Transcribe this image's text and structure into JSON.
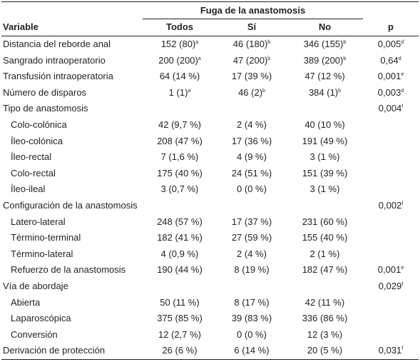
{
  "table": {
    "group_header": "Fuga de la anastomosis",
    "columns": [
      "Variable",
      "Todos",
      "Sí",
      "No",
      "p"
    ],
    "rows": [
      {
        "label": "Distancia del reborde anal",
        "indent": false,
        "cells": [
          [
            "152 (80)",
            "a"
          ],
          [
            "46 (180)",
            "b"
          ],
          [
            "346 (155)",
            "b"
          ],
          [
            "0,005",
            "d"
          ]
        ]
      },
      {
        "label": "Sangrado intraoperatorio",
        "indent": false,
        "cells": [
          [
            "200 (200)",
            "a"
          ],
          [
            "47 (200)",
            "b"
          ],
          [
            "389 (200)",
            "b"
          ],
          [
            "0,64",
            "d"
          ]
        ]
      },
      {
        "label": "Transfusión intraoperatoria",
        "indent": false,
        "cells": [
          [
            "64 (14 %)",
            ""
          ],
          [
            "17 (39 %)",
            ""
          ],
          [
            "47 (12 %)",
            ""
          ],
          [
            "0,001",
            "e"
          ]
        ]
      },
      {
        "label": "Número de disparos",
        "indent": false,
        "cells": [
          [
            "1 (1)",
            "a"
          ],
          [
            "46 (2)",
            "b"
          ],
          [
            "384 (1)",
            "b"
          ],
          [
            "0,003",
            "d"
          ]
        ]
      },
      {
        "label": "Tipo de anastomosis",
        "indent": false,
        "cells": [
          [
            "",
            ""
          ],
          [
            "",
            ""
          ],
          [
            "",
            ""
          ],
          [
            "0,004",
            "f"
          ]
        ]
      },
      {
        "label": "Colo-colónica",
        "indent": true,
        "cells": [
          [
            "42 (9,7 %)",
            ""
          ],
          [
            "2 (4 %)",
            ""
          ],
          [
            "40 (10 %)",
            ""
          ],
          [
            "",
            ""
          ]
        ]
      },
      {
        "label": "Íleo-colónica",
        "indent": true,
        "cells": [
          [
            "208 (47 %)",
            ""
          ],
          [
            "17 (36 %)",
            ""
          ],
          [
            "191 (49 %)",
            ""
          ],
          [
            "",
            ""
          ]
        ]
      },
      {
        "label": "Íleo-rectal",
        "indent": true,
        "cells": [
          [
            "7 (1,6 %)",
            ""
          ],
          [
            "4 (9 %)",
            ""
          ],
          [
            "3 (1 %)",
            ""
          ],
          [
            "",
            ""
          ]
        ]
      },
      {
        "label": "Colo-rectal",
        "indent": true,
        "cells": [
          [
            "175 (40 %)",
            ""
          ],
          [
            "24 (51 %)",
            ""
          ],
          [
            "151 (39 %)",
            ""
          ],
          [
            "",
            ""
          ]
        ]
      },
      {
        "label": "Íleo-ileal",
        "indent": true,
        "cells": [
          [
            "3 (0,7 %)",
            ""
          ],
          [
            "0 (0 %)",
            ""
          ],
          [
            "3 (1 %)",
            ""
          ],
          [
            "",
            ""
          ]
        ]
      },
      {
        "label": "Configuración de la anastomosis",
        "indent": false,
        "cells": [
          [
            "",
            ""
          ],
          [
            "",
            ""
          ],
          [
            "",
            ""
          ],
          [
            "0,002",
            "f"
          ]
        ]
      },
      {
        "label": "Latero-lateral",
        "indent": true,
        "cells": [
          [
            "248 (57 %)",
            ""
          ],
          [
            "17 (37 %)",
            ""
          ],
          [
            "231 (60 %)",
            ""
          ],
          [
            "",
            ""
          ]
        ]
      },
      {
        "label": "Término-terminal",
        "indent": true,
        "cells": [
          [
            "182 (41 %)",
            ""
          ],
          [
            "27 (59 %)",
            ""
          ],
          [
            "155 (40 %)",
            ""
          ],
          [
            "",
            ""
          ]
        ]
      },
      {
        "label": "Término-lateral",
        "indent": true,
        "cells": [
          [
            "4 (0,9 %)",
            ""
          ],
          [
            "2 (4 %)",
            ""
          ],
          [
            "2 (1 %)",
            ""
          ],
          [
            "",
            ""
          ]
        ]
      },
      {
        "label": "Refuerzo de la anastomosis",
        "indent": true,
        "cells": [
          [
            "190 (44 %)",
            ""
          ],
          [
            "8 (19 %)",
            ""
          ],
          [
            "182 (47 %)",
            ""
          ],
          [
            "0,001",
            "e"
          ]
        ]
      },
      {
        "label": "Vía de abordaje",
        "indent": false,
        "cells": [
          [
            "",
            ""
          ],
          [
            "",
            ""
          ],
          [
            "",
            ""
          ],
          [
            "0,029",
            "f"
          ]
        ]
      },
      {
        "label": "Abierta",
        "indent": true,
        "cells": [
          [
            "50 (11 %)",
            ""
          ],
          [
            "8 (17 %)",
            ""
          ],
          [
            "42 (11 %)",
            ""
          ],
          [
            "",
            ""
          ]
        ]
      },
      {
        "label": "Laparoscópica",
        "indent": true,
        "cells": [
          [
            "375 (85 %)",
            ""
          ],
          [
            "39 (83 %)",
            ""
          ],
          [
            "336 (86 %)",
            ""
          ],
          [
            "",
            ""
          ]
        ]
      },
      {
        "label": "Conversión",
        "indent": true,
        "cells": [
          [
            "12 (2,7 %)",
            ""
          ],
          [
            "0 (0 %)",
            ""
          ],
          [
            "12 (3 %)",
            ""
          ],
          [
            "",
            ""
          ]
        ]
      },
      {
        "label": "Derivación de protección",
        "indent": false,
        "cells": [
          [
            "26 (6 %)",
            ""
          ],
          [
            "6 (14 %)",
            ""
          ],
          [
            "20 (5 %)",
            ""
          ],
          [
            "0,031",
            "f"
          ]
        ]
      }
    ]
  }
}
